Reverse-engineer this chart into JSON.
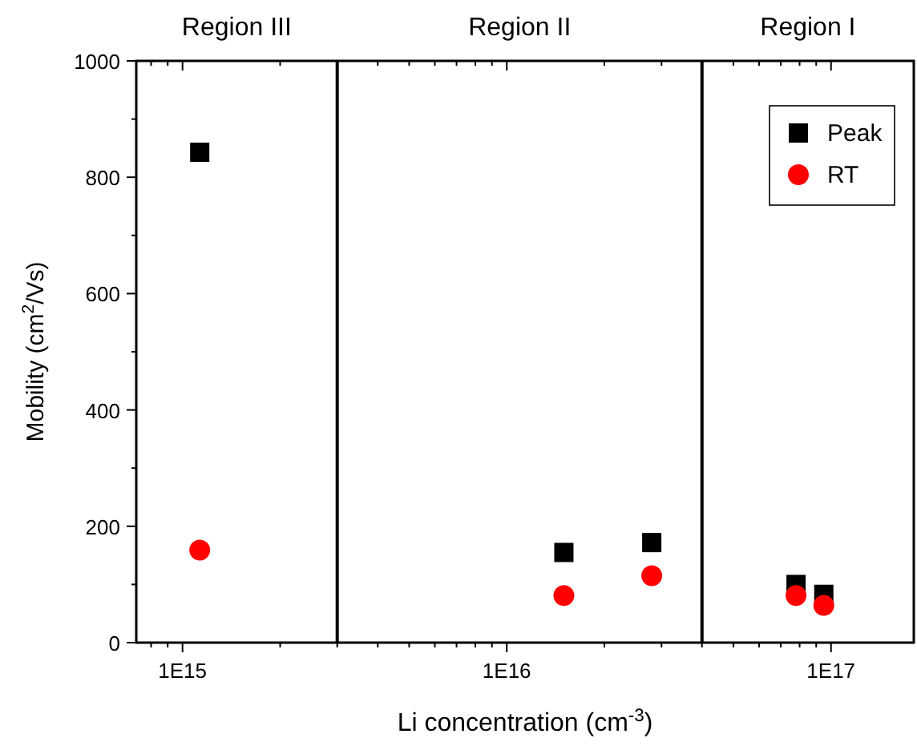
{
  "chart_data": {
    "type": "scatter",
    "xlabel": "Li concentration (cm$^{-3}$)",
    "ylabel": "Mobility (cm$^{2}$/Vs)",
    "log": "x",
    "xlim": [
      720000000000000.0,
      1.8e+17
    ],
    "ylim": [
      0,
      1000
    ],
    "xticks": [
      {
        "value": 800000000000000.0,
        "label": null
      },
      {
        "value": 900000000000000.0,
        "label": null
      },
      {
        "value": 1000000000000000.0,
        "label": "1E15"
      },
      {
        "value": 2000000000000000.0,
        "label": null
      },
      {
        "value": 3000000000000000.0,
        "label": null
      },
      {
        "value": 4000000000000000.0,
        "label": null
      },
      {
        "value": 5000000000000000.0,
        "label": null
      },
      {
        "value": 6000000000000000.0,
        "label": null
      },
      {
        "value": 7000000000000000.0,
        "label": null
      },
      {
        "value": 8000000000000000.0,
        "label": null
      },
      {
        "value": 9000000000000000.0,
        "label": null
      },
      {
        "value": 1e+16,
        "label": "1E16"
      },
      {
        "value": 2e+16,
        "label": null
      },
      {
        "value": 3e+16,
        "label": null
      },
      {
        "value": 4e+16,
        "label": null
      },
      {
        "value": 5e+16,
        "label": null
      },
      {
        "value": 6e+16,
        "label": null
      },
      {
        "value": 7e+16,
        "label": null
      },
      {
        "value": 8e+16,
        "label": null
      },
      {
        "value": 9e+16,
        "label": null
      },
      {
        "value": 1e+17,
        "label": "1E17"
      }
    ],
    "yticks": [
      0,
      {
        "value": 100,
        "label": null
      },
      200,
      {
        "value": 300,
        "label": null
      },
      400,
      {
        "value": 500,
        "label": null
      },
      600,
      {
        "value": 700,
        "label": null
      },
      800,
      {
        "value": 900,
        "label": null
      },
      1000
    ],
    "ref_lines": [
      {
        "axis": "x",
        "value": 3000000000000000.0,
        "color": "#000000"
      },
      {
        "axis": "x",
        "value": 4e+16,
        "color": "#000000"
      }
    ],
    "annotations": [
      "Region III",
      "Region II",
      "Region I"
    ],
    "grid": false,
    "legend": "top right",
    "series": [
      {
        "name": "Peak",
        "color": "#000000",
        "marker": "square",
        "x": [
          1130000000000000.0,
          1.5e+16,
          2.8e+16,
          7.8e+16,
          9.5e+16
        ],
        "values": [
          843,
          155,
          172,
          100,
          83
        ]
      },
      {
        "name": "RT",
        "color": "#ff0000",
        "marker": "circle",
        "x": [
          1130000000000000.0,
          1.5e+16,
          2.8e+16,
          7.8e+16,
          9.5e+16
        ],
        "values": [
          159,
          81,
          115,
          81,
          64
        ]
      }
    ]
  }
}
